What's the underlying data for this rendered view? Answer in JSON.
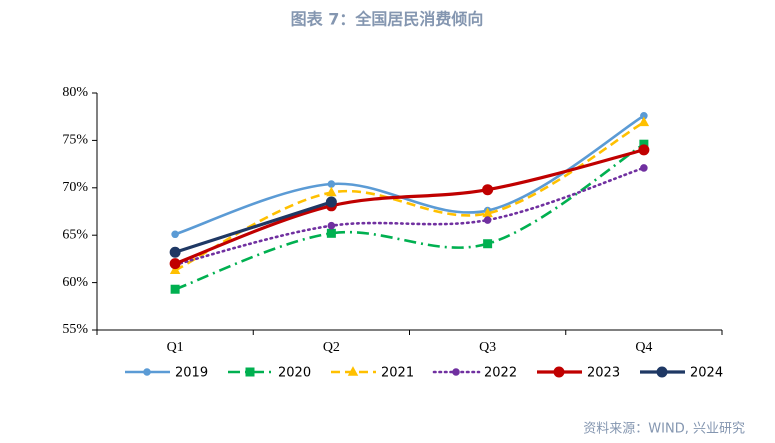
{
  "chart_data": {
    "type": "line",
    "title": "图表 7：全国居民消费倾向",
    "source": "资料来源：WIND, 兴业研究",
    "categories": [
      "Q1",
      "Q2",
      "Q3",
      "Q4"
    ],
    "series": [
      {
        "name": "2019",
        "color": "#5b9bd5",
        "dash": "solid",
        "marker": "circle",
        "values": [
          65.1,
          70.4,
          67.6,
          77.6
        ]
      },
      {
        "name": "2020",
        "color": "#00b050",
        "dash": "dashdot",
        "marker": "square",
        "values": [
          59.3,
          65.2,
          64.1,
          74.6
        ]
      },
      {
        "name": "2021",
        "color": "#ffc000",
        "dash": "dashed",
        "marker": "triangle",
        "values": [
          61.3,
          69.5,
          67.3,
          76.9
        ]
      },
      {
        "name": "2022",
        "color": "#7030a0",
        "dash": "dotted",
        "marker": "circle",
        "values": [
          61.9,
          66.0,
          66.6,
          72.1
        ]
      },
      {
        "name": "2023",
        "color": "#c00000",
        "dash": "solid",
        "marker": "circle",
        "values": [
          62.0,
          68.1,
          69.8,
          74.0
        ]
      },
      {
        "name": "2024",
        "color": "#1f3864",
        "dash": "solid",
        "marker": "circle",
        "values": [
          63.2,
          68.5,
          null,
          null
        ]
      }
    ],
    "ylim": [
      55,
      80
    ],
    "yticks": [
      {
        "value": 55,
        "label": "55%"
      },
      {
        "value": 60,
        "label": "60%"
      },
      {
        "value": 65,
        "label": "65%"
      },
      {
        "value": 70,
        "label": "70%"
      },
      {
        "value": 75,
        "label": "75%"
      },
      {
        "value": 80,
        "label": "80%"
      }
    ],
    "smooth": true,
    "grid": false,
    "legend": "bottom"
  }
}
